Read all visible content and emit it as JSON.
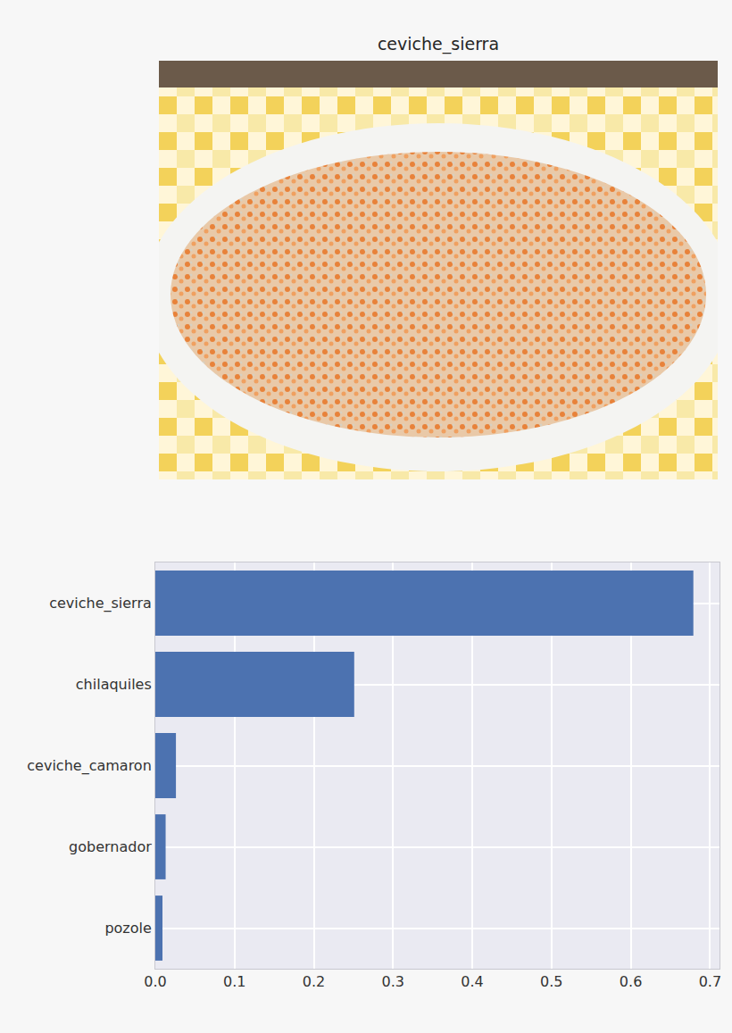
{
  "image": {
    "title": "ceviche_sierra"
  },
  "chart_data": {
    "type": "bar",
    "orientation": "horizontal",
    "categories": [
      "ceviche_sierra",
      "chilaquiles",
      "ceviche_camaron",
      "gobernador",
      "pozole"
    ],
    "values": [
      0.679,
      0.251,
      0.026,
      0.013,
      0.009
    ],
    "color": "#4c72b0",
    "xlim": [
      0,
      0.712
    ],
    "xticks": [
      {
        "value": 0,
        "label": "0.0"
      },
      0.1,
      0.2,
      0.3,
      0.4,
      0.5,
      0.6,
      0.7
    ],
    "grid": true
  }
}
